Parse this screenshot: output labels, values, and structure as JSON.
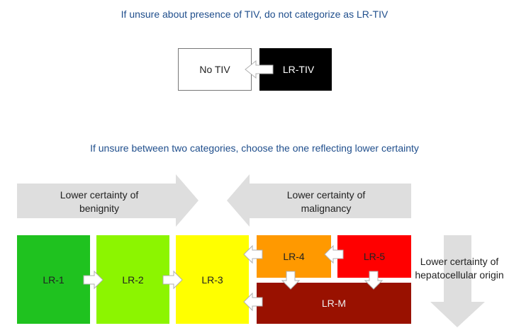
{
  "tiv_rule": {
    "heading": "If unsure about presence of TIV, do not categorize as LR-TIV",
    "no_tiv_label": "No TIV",
    "lr_tiv_label": "LR-TIV"
  },
  "category_rule": {
    "heading": "If unsure between two categories, choose the one reflecting lower certainty",
    "benignity_label": "Lower certainty of benignity",
    "malignancy_label": "Lower certainty of malignancy",
    "hepatocellular_label": "Lower certainty of hepatocellular origin"
  },
  "categories": {
    "lr1": "LR-1",
    "lr2": "LR-2",
    "lr3": "LR-3",
    "lr4": "LR-4",
    "lr5": "LR-5",
    "lrm": "LR-M"
  },
  "colors": {
    "heading_blue": "#1f4e8c",
    "lr1": "#1fc21f",
    "lr2": "#8cf500",
    "lr3": "#ffff00",
    "lr4": "#ff9900",
    "lr5": "#ff0000",
    "lrm": "#991100",
    "lr_tiv": "#000000",
    "band_gray": "#dedede"
  }
}
